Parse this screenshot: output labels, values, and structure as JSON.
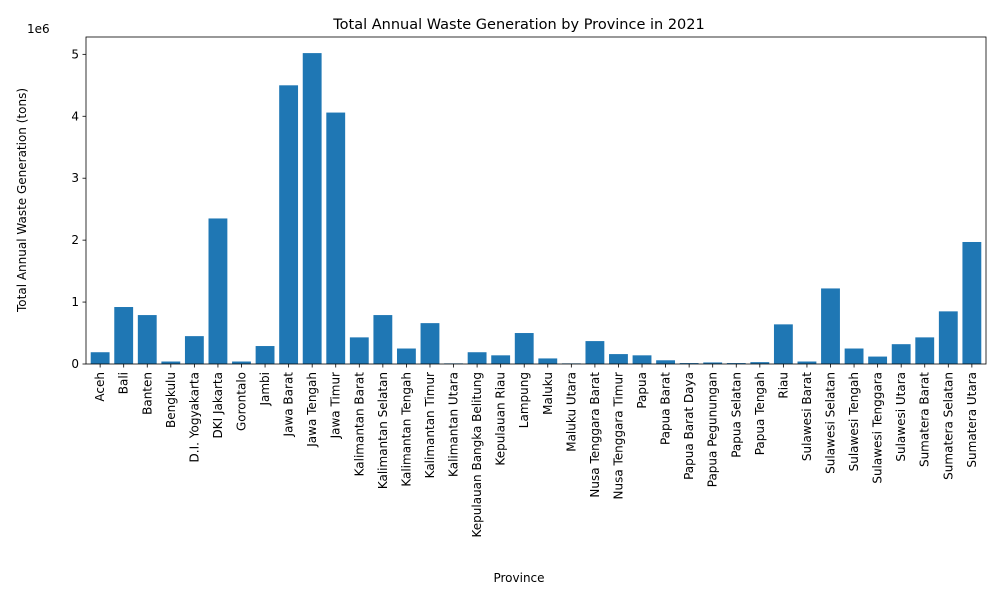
{
  "chart_data": {
    "type": "bar",
    "title": "Total Annual Waste Generation by Province in 2021",
    "xlabel": "Province",
    "ylabel": "Total Annual Waste Generation (tons)",
    "offset_label": "1e6",
    "ylim": [
      0,
      5280000
    ],
    "yticks": [
      0,
      1,
      2,
      3,
      4,
      5
    ],
    "tick_scale": 1000000,
    "bar_color": "#1f77b4",
    "grid": false,
    "categories": [
      "Aceh",
      "Bali",
      "Banten",
      "Bengkulu",
      "D.I. Yogyakarta",
      "DKI Jakarta",
      "Gorontalo",
      "Jambi",
      "Jawa Barat",
      "Jawa Tengah",
      "Jawa Timur",
      "Kalimantan Barat",
      "Kalimantan Selatan",
      "Kalimantan Tengah",
      "Kalimantan Timur",
      "Kalimantan Utara",
      "Kepulauan Bangka Belitung",
      "Kepulauan Riau",
      "Lampung",
      "Maluku",
      "Maluku Utara",
      "Nusa Tenggara Barat",
      "Nusa Tenggara Timur",
      "Papua",
      "Papua Barat",
      "Papua Barat Daya",
      "Papua Pegunungan",
      "Papua Selatan",
      "Papua Tengah",
      "Riau",
      "Sulawesi Barat",
      "Sulawesi Selatan",
      "Sulawesi Tengah",
      "Sulawesi Tenggara",
      "Sulawesi Utara",
      "Sumatera Barat",
      "Sumatera Selatan",
      "Sumatera Utara"
    ],
    "values": [
      190000,
      920000,
      790000,
      40000,
      450000,
      2350000,
      40000,
      290000,
      4500000,
      5020000,
      4060000,
      430000,
      790000,
      250000,
      660000,
      10000,
      190000,
      140000,
      500000,
      90000,
      10000,
      370000,
      160000,
      140000,
      60000,
      15000,
      25000,
      15000,
      30000,
      640000,
      40000,
      1220000,
      250000,
      120000,
      320000,
      430000,
      850000,
      1970000
    ]
  }
}
